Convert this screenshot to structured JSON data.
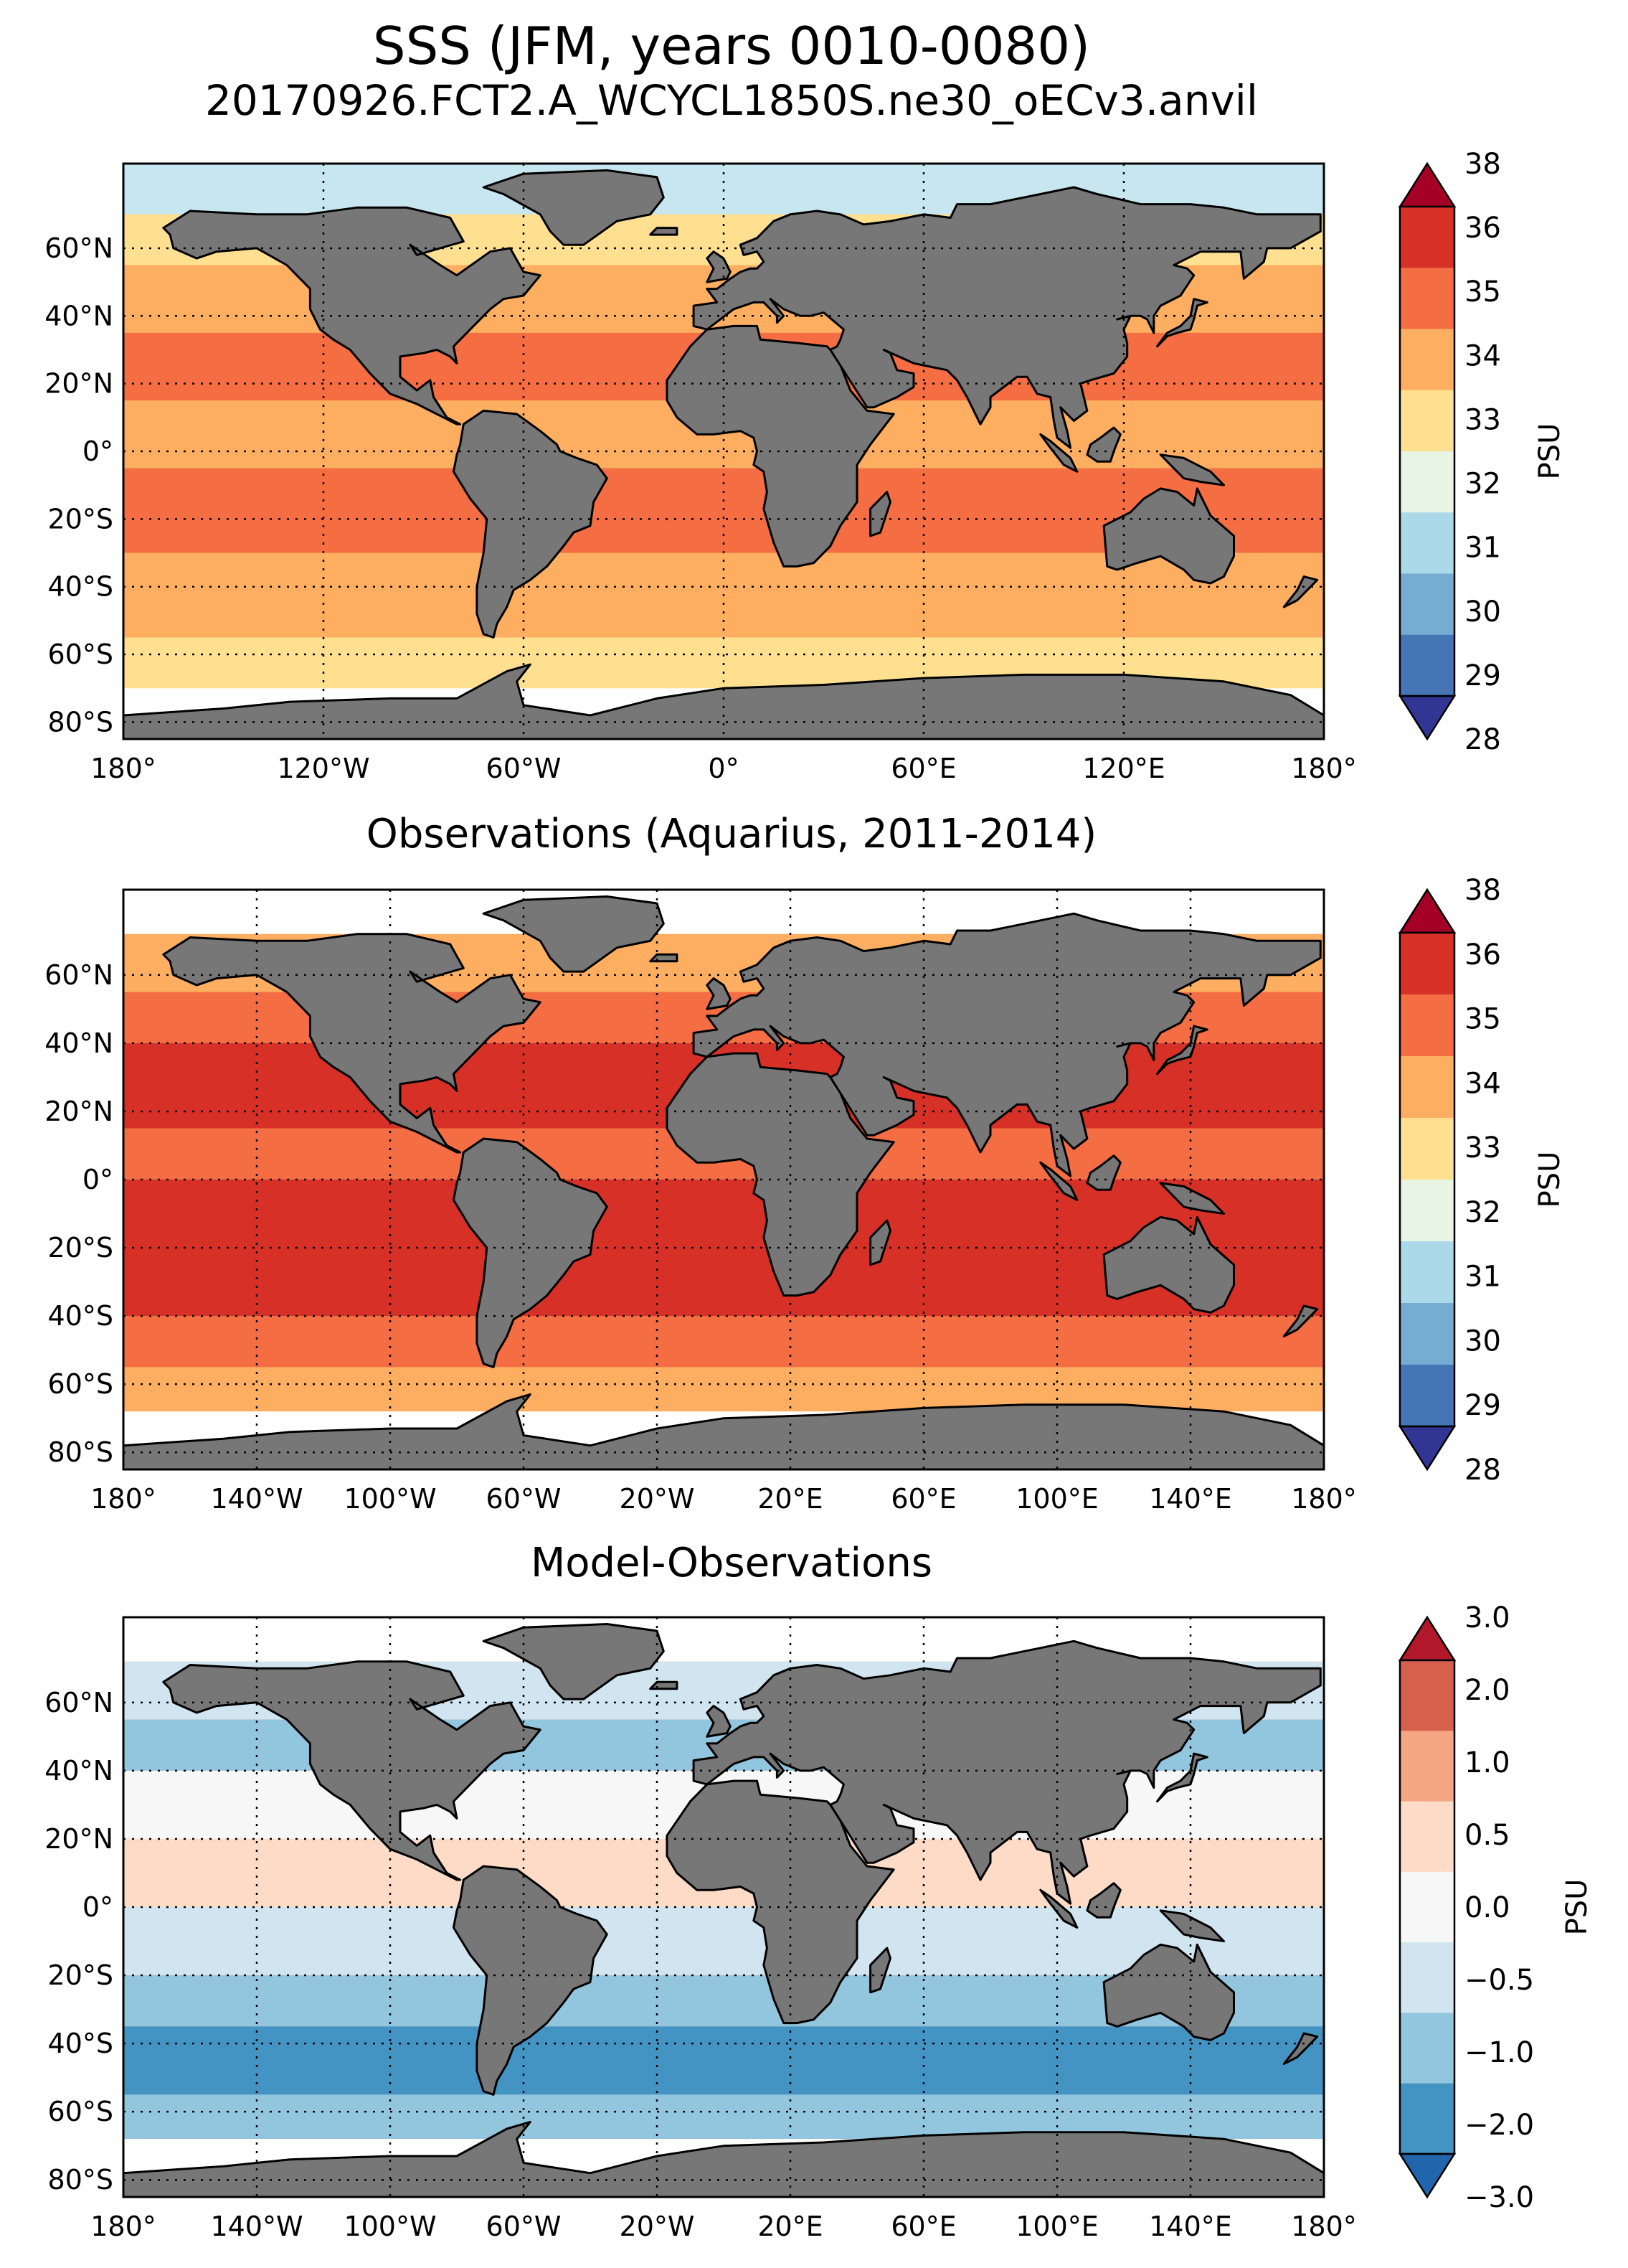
{
  "figure": {
    "title": "SSS (JFM, years 0010-0080)",
    "subtitle": "20170926.FCT2.A_WCYCL1850S.ne30_oECv3.anvil"
  },
  "map_data": [
    {
      "id": "model",
      "title": "",
      "lat_ticks": [
        "60°N",
        "40°N",
        "20°N",
        "0°",
        "20°S",
        "40°S",
        "60°S",
        "80°S"
      ],
      "lon_ticks": [
        "180°",
        "120°W",
        "60°W",
        "0°",
        "60°E",
        "120°E",
        "180°"
      ],
      "colorbar": {
        "labels": [
          "38",
          "36",
          "35",
          "34",
          "33",
          "32",
          "31",
          "30",
          "29",
          "28"
        ],
        "colors": [
          "#a50026",
          "#d73027",
          "#f46d43",
          "#fdae61",
          "#fee090",
          "#e8f4e4",
          "#abd9e9",
          "#74add1",
          "#4575b4",
          "#313695"
        ],
        "unit": "PSU"
      }
    },
    {
      "id": "obs",
      "title": "Observations (Aquarius, 2011-2014)",
      "lat_ticks": [
        "60°N",
        "40°N",
        "20°N",
        "0°",
        "20°S",
        "40°S",
        "60°S",
        "80°S"
      ],
      "lon_ticks": [
        "180°",
        "140°W",
        "100°W",
        "60°W",
        "20°W",
        "20°E",
        "60°E",
        "100°E",
        "140°E",
        "180°"
      ],
      "colorbar": {
        "labels": [
          "38",
          "36",
          "35",
          "34",
          "33",
          "32",
          "31",
          "30",
          "29",
          "28"
        ],
        "colors": [
          "#a50026",
          "#d73027",
          "#f46d43",
          "#fdae61",
          "#fee090",
          "#e8f4e4",
          "#abd9e9",
          "#74add1",
          "#4575b4",
          "#313695"
        ],
        "unit": "PSU"
      }
    },
    {
      "id": "diff",
      "title": "Model-Observations",
      "lat_ticks": [
        "60°N",
        "40°N",
        "20°N",
        "0°",
        "20°S",
        "40°S",
        "60°S",
        "80°S"
      ],
      "lon_ticks": [
        "180°",
        "140°W",
        "100°W",
        "60°W",
        "20°W",
        "20°E",
        "60°E",
        "100°E",
        "140°E",
        "180°"
      ],
      "colorbar": {
        "labels": [
          "3.0",
          "2.0",
          "1.0",
          "0.5",
          "0.0",
          "−0.5",
          "−1.0",
          "−2.0",
          "−3.0"
        ],
        "colors": [
          "#b2182b",
          "#d6604d",
          "#f4a582",
          "#fddbc7",
          "#f7f7f7",
          "#d1e5f0",
          "#92c5de",
          "#4393c3",
          "#2166ac"
        ],
        "unit": "PSU"
      }
    }
  ]
}
